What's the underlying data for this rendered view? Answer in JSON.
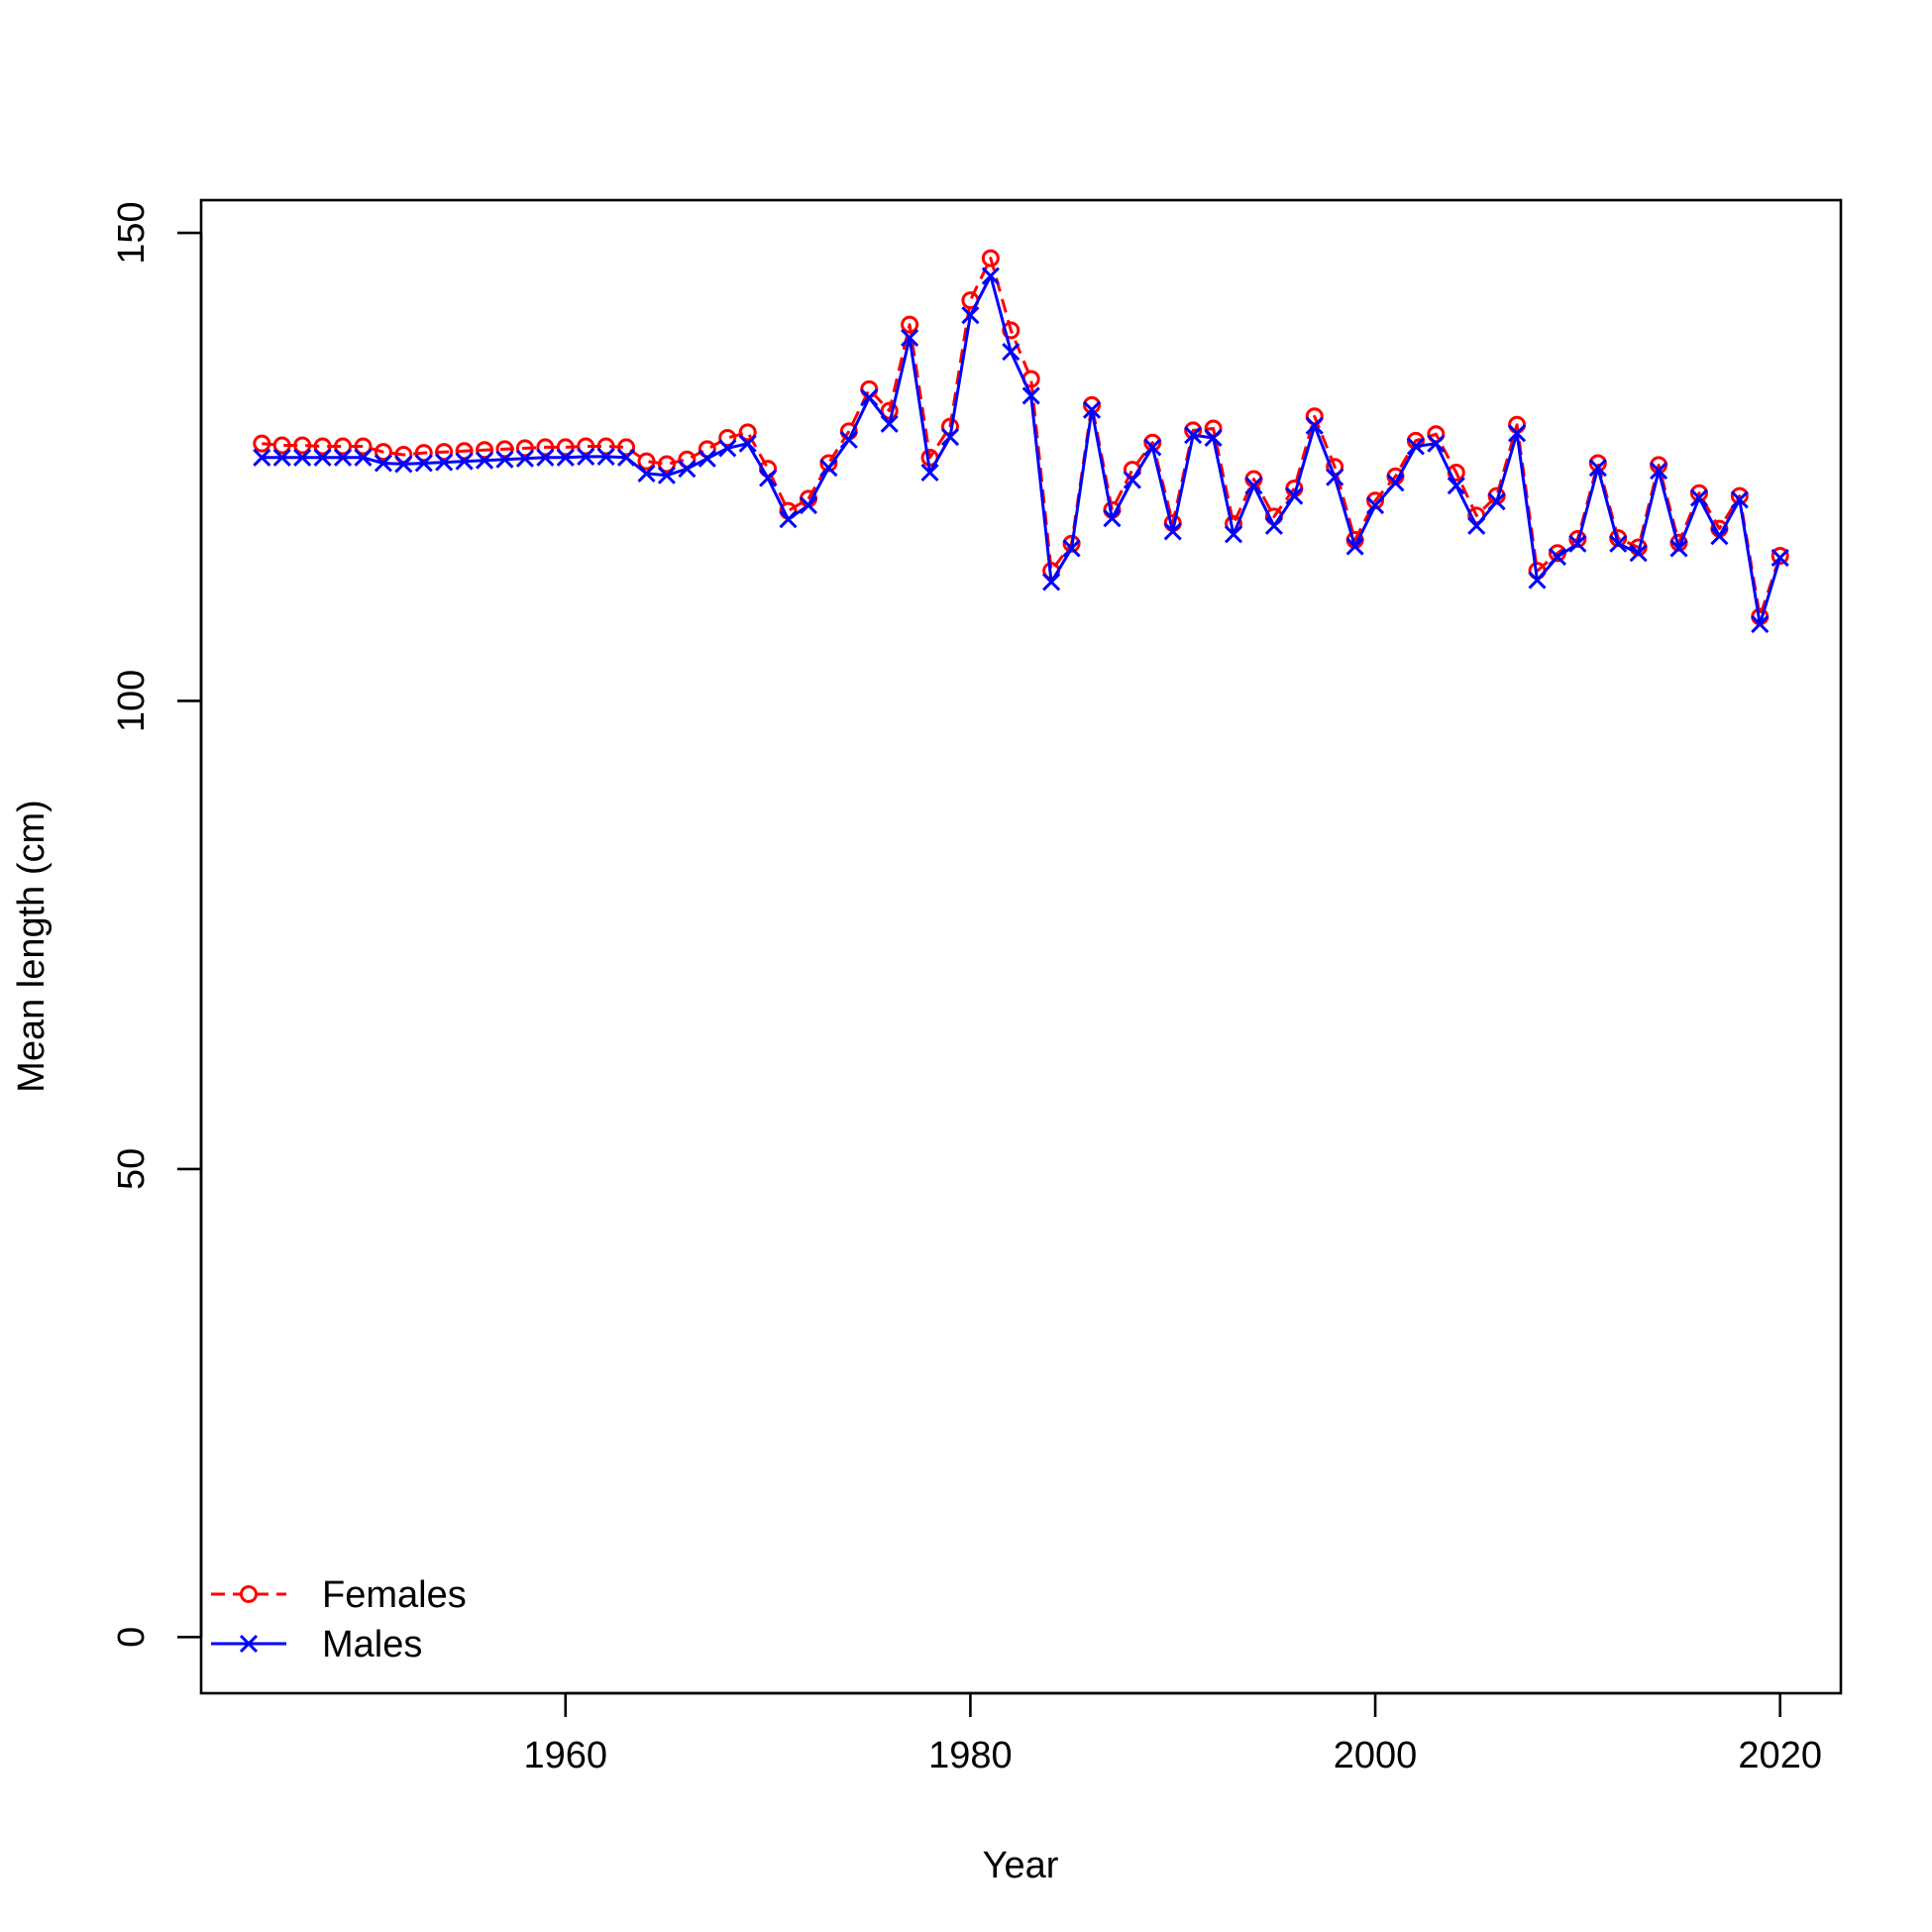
{
  "chart_data": {
    "type": "line",
    "title": "",
    "xlabel": "Year",
    "ylabel": "Mean length (cm)",
    "xlim": [
      1942,
      2023
    ],
    "ylim": [
      -6,
      153.5
    ],
    "x_ticks": [
      1960,
      1980,
      2000,
      2020
    ],
    "y_ticks": [
      0,
      50,
      100,
      150
    ],
    "grid": false,
    "legend": {
      "placement": "bottom-left",
      "entries": [
        {
          "name": "Females",
          "color": "#ff0000",
          "line": "dashed",
          "marker": "circle"
        },
        {
          "name": "Males",
          "color": "#0000ff",
          "line": "solid",
          "marker": "x"
        }
      ]
    },
    "x": [
      1945,
      1946,
      1947,
      1948,
      1949,
      1950,
      1951,
      1952,
      1953,
      1954,
      1955,
      1956,
      1957,
      1958,
      1959,
      1960,
      1961,
      1962,
      1963,
      1964,
      1965,
      1966,
      1967,
      1968,
      1969,
      1970,
      1971,
      1972,
      1973,
      1974,
      1975,
      1976,
      1977,
      1978,
      1979,
      1980,
      1981,
      1982,
      1983,
      1984,
      1985,
      1986,
      1987,
      1988,
      1989,
      1990,
      1991,
      1992,
      1993,
      1994,
      1995,
      1996,
      1997,
      1998,
      1999,
      2000,
      2001,
      2002,
      2003,
      2004,
      2005,
      2006,
      2007,
      2008,
      2009,
      2010,
      2011,
      2012,
      2013,
      2014,
      2015,
      2016,
      2017,
      2018,
      2019,
      2020
    ],
    "series": [
      {
        "name": "Females",
        "color": "#ff0000",
        "values": [
          127.5,
          127.3,
          127.3,
          127.2,
          127.2,
          127.2,
          126.6,
          126.3,
          126.5,
          126.6,
          126.7,
          126.8,
          126.9,
          127.0,
          127.1,
          127.1,
          127.2,
          127.2,
          127.1,
          125.6,
          125.3,
          125.8,
          126.9,
          128.1,
          128.7,
          124.8,
          120.3,
          121.6,
          125.4,
          128.8,
          133.3,
          131.0,
          140.2,
          126.0,
          129.3,
          142.8,
          147.3,
          139.6,
          134.4,
          113.9,
          116.8,
          131.6,
          120.4,
          124.7,
          127.6,
          119.0,
          128.9,
          129.1,
          118.9,
          123.7,
          119.7,
          122.7,
          130.4,
          125.0,
          117.2,
          121.4,
          124.0,
          127.8,
          128.5,
          124.4,
          119.8,
          121.9,
          129.5,
          113.9,
          115.8,
          117.3,
          125.4,
          117.4,
          116.4,
          125.2,
          116.9,
          122.2,
          118.4,
          121.9,
          109.0,
          115.5
        ]
      },
      {
        "name": "Males",
        "color": "#0000ff",
        "values": [
          126.0,
          126.0,
          126.0,
          126.0,
          126.0,
          126.0,
          125.4,
          125.3,
          125.4,
          125.5,
          125.6,
          125.7,
          125.8,
          125.9,
          126.0,
          126.0,
          126.1,
          126.1,
          126.0,
          124.3,
          124.1,
          124.8,
          125.9,
          127.0,
          127.5,
          123.8,
          119.4,
          120.9,
          124.9,
          127.9,
          132.4,
          129.6,
          138.8,
          124.4,
          128.2,
          141.2,
          145.4,
          137.3,
          132.6,
          112.7,
          116.3,
          131.1,
          119.5,
          123.6,
          127.1,
          118.1,
          128.4,
          128.1,
          117.8,
          123.0,
          118.7,
          121.9,
          129.4,
          123.9,
          116.5,
          120.9,
          123.3,
          127.2,
          127.5,
          123.0,
          118.7,
          121.3,
          128.6,
          112.9,
          115.4,
          116.8,
          124.9,
          116.8,
          115.8,
          124.6,
          116.3,
          121.7,
          117.6,
          121.5,
          108.2,
          115.3
        ]
      }
    ]
  }
}
